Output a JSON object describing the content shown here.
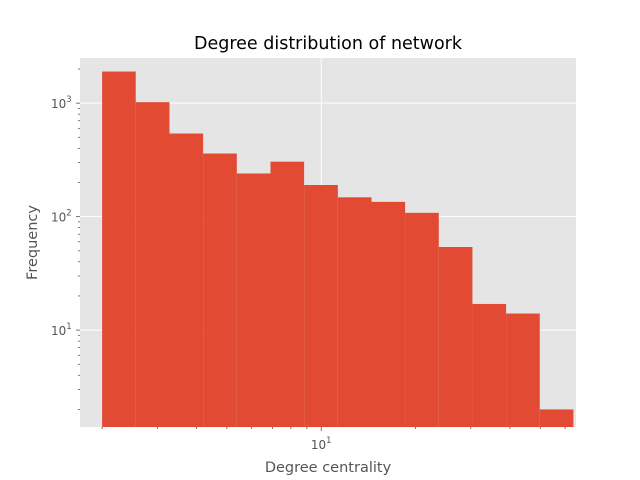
{
  "chart_data": {
    "type": "bar",
    "title": "Degree distribution of network",
    "xlabel": "Degree centrality",
    "ylabel": "Frequency",
    "xscale": "log",
    "yscale": "log",
    "xlim": [
      1.7,
      65
    ],
    "ylim": [
      1.4,
      2500
    ],
    "grid": true,
    "style": "ggplot",
    "bar_color": "#e24a33",
    "background_color": "#e5e5e5",
    "x_ticks": [
      {
        "base": "10",
        "exp": "1",
        "value": 10
      }
    ],
    "y_ticks": [
      {
        "base": "10",
        "exp": "1",
        "value": 10
      },
      {
        "base": "10",
        "exp": "2",
        "value": 100
      },
      {
        "base": "10",
        "exp": "3",
        "value": 1000
      }
    ],
    "bins": [
      {
        "x0": 2.0,
        "x1": 2.56,
        "count": 1900
      },
      {
        "x0": 2.56,
        "x1": 3.28,
        "count": 1020
      },
      {
        "x0": 3.28,
        "x1": 4.2,
        "count": 540
      },
      {
        "x0": 4.2,
        "x1": 5.38,
        "count": 360
      },
      {
        "x0": 5.38,
        "x1": 6.89,
        "count": 240
      },
      {
        "x0": 6.89,
        "x1": 8.82,
        "count": 305
      },
      {
        "x0": 8.82,
        "x1": 11.3,
        "count": 190
      },
      {
        "x0": 11.3,
        "x1": 14.47,
        "count": 148
      },
      {
        "x0": 14.47,
        "x1": 18.52,
        "count": 135
      },
      {
        "x0": 18.52,
        "x1": 23.72,
        "count": 108
      },
      {
        "x0": 23.72,
        "x1": 30.37,
        "count": 54
      },
      {
        "x0": 30.37,
        "x1": 38.89,
        "count": 17
      },
      {
        "x0": 38.89,
        "x1": 49.8,
        "count": 14
      },
      {
        "x0": 49.8,
        "x1": 63.77,
        "count": 2
      }
    ]
  }
}
